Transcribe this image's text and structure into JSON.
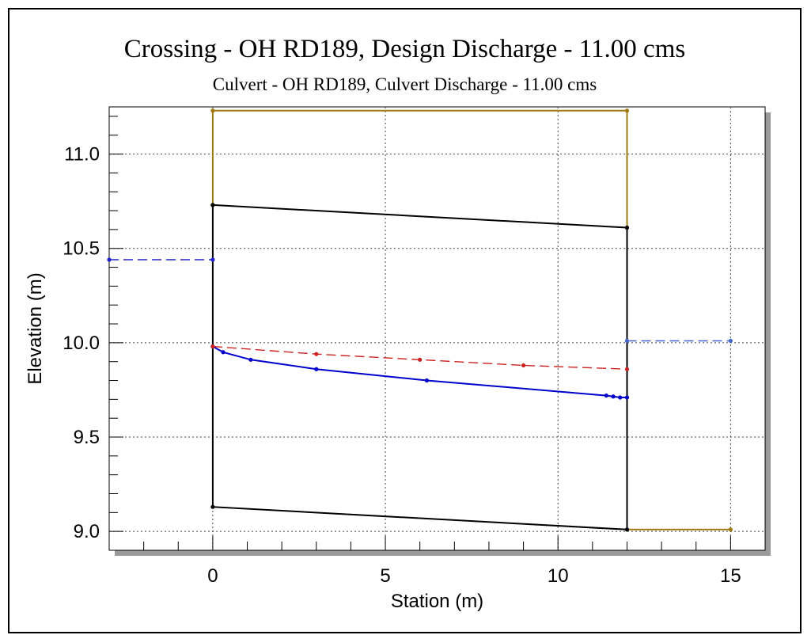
{
  "chart_data": {
    "type": "line",
    "title": "Crossing - OH RD189, Design Discharge - 11.00 cms",
    "subtitle": "Culvert - OH RD189, Culvert Discharge - 11.00 cms",
    "xlabel": "Station (m)",
    "ylabel": "Elevation (m)",
    "xlim": [
      -3,
      16
    ],
    "ylim": [
      8.9,
      11.25
    ],
    "x_ticks": [
      0,
      5,
      10,
      15
    ],
    "y_ticks": [
      9.0,
      9.5,
      10.0,
      10.5,
      11.0
    ],
    "x_tick_labels": [
      "0",
      "5",
      "10",
      "15"
    ],
    "y_tick_labels": [
      "9.0",
      "9.5",
      "10.0",
      "10.5",
      "11.0"
    ],
    "grid": true,
    "series": [
      {
        "color": "#a07a10",
        "style": "solid",
        "x": [
          0,
          0,
          12,
          12,
          12,
          15
        ],
        "y": [
          10.73,
          11.23,
          11.23,
          10.61,
          9.01,
          9.01
        ]
      },
      {
        "color": "#000000",
        "style": "solid",
        "x": [
          0,
          12,
          12,
          0,
          0
        ],
        "y": [
          10.73,
          10.61,
          9.01,
          9.13,
          10.73
        ]
      },
      {
        "color": "#0000cc",
        "style": "solid",
        "x": [
          0,
          0.3,
          1.1,
          3.0,
          6.2,
          11.4,
          11.6,
          11.8,
          12
        ],
        "y": [
          9.98,
          9.95,
          9.91,
          9.86,
          9.8,
          9.72,
          9.715,
          9.71,
          9.71
        ]
      },
      {
        "color": "#cc2222",
        "style": "dashed",
        "x": [
          0,
          3,
          6,
          9,
          12
        ],
        "y": [
          9.98,
          9.94,
          9.91,
          9.88,
          9.86
        ]
      },
      {
        "color": "#2222cc",
        "style": "dashed",
        "x": [
          -3,
          0
        ],
        "y": [
          10.44,
          10.44
        ]
      },
      {
        "color": "#4466cc",
        "style": "dashed",
        "x": [
          12,
          15
        ],
        "y": [
          10.01,
          10.01
        ]
      }
    ]
  }
}
